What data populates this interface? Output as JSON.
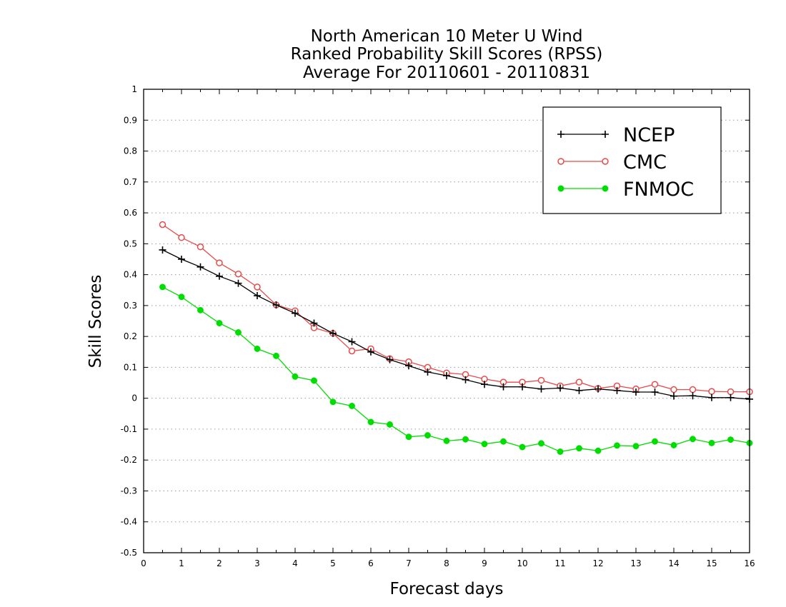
{
  "chart_data": {
    "type": "line",
    "title_lines": [
      "North American 10 Meter U Wind",
      "Ranked Probability Skill Scores (RPSS)",
      "Average For 20110601 - 20110831"
    ],
    "xlabel": "Forecast days",
    "ylabel": "Skill Scores",
    "xlim": [
      0,
      16
    ],
    "ylim": [
      -0.5,
      1
    ],
    "x_ticks": [
      0,
      1,
      2,
      3,
      4,
      5,
      6,
      7,
      8,
      9,
      10,
      11,
      12,
      13,
      14,
      15,
      16
    ],
    "y_ticks": [
      -0.5,
      -0.4,
      -0.3,
      -0.2,
      -0.1,
      0,
      0.1,
      0.2,
      0.3,
      0.4,
      0.5,
      0.6,
      0.7,
      0.8,
      0.9,
      1
    ],
    "y_tick_labels": [
      "-0.5",
      "-0.4",
      "-0.3",
      "-0.2",
      "-0.1",
      "0",
      "0.1",
      "0.2",
      "0.3",
      "0.4",
      "0.5",
      "0.6",
      "0.7",
      "0.8",
      "0.9",
      "1"
    ],
    "grid": "horizontal dotted",
    "legend_position": "top-right",
    "x": [
      0.5,
      1,
      1.5,
      2,
      2.5,
      3,
      3.5,
      4,
      4.5,
      5,
      5.5,
      6,
      6.5,
      7,
      7.5,
      8,
      8.5,
      9,
      9.5,
      10,
      10.5,
      11,
      11.5,
      12,
      12.5,
      13,
      13.5,
      14,
      14.5,
      15,
      15.5,
      16
    ],
    "series": [
      {
        "name": "NCEP",
        "color": "#000000",
        "marker": "plus",
        "values": [
          0.48,
          0.45,
          0.425,
          0.395,
          0.372,
          0.332,
          0.302,
          0.275,
          0.243,
          0.21,
          0.183,
          0.15,
          0.125,
          0.105,
          0.085,
          0.073,
          0.06,
          0.045,
          0.037,
          0.037,
          0.03,
          0.033,
          0.025,
          0.03,
          0.025,
          0.02,
          0.02,
          0.007,
          0.008,
          0.002,
          0.002,
          -0.003
        ]
      },
      {
        "name": "CMC",
        "color": "#e84a4a",
        "marker": "open-circle",
        "values": [
          0.562,
          0.52,
          0.49,
          0.438,
          0.402,
          0.36,
          0.302,
          0.283,
          0.228,
          0.21,
          0.153,
          0.16,
          0.128,
          0.118,
          0.1,
          0.082,
          0.077,
          0.062,
          0.052,
          0.052,
          0.058,
          0.04,
          0.052,
          0.032,
          0.04,
          0.03,
          0.045,
          0.028,
          0.028,
          0.022,
          0.021,
          0.021
        ]
      },
      {
        "name": "FNMOC",
        "color": "#00dd00",
        "marker": "filled-circle",
        "values": [
          0.36,
          0.328,
          0.285,
          0.243,
          0.213,
          0.16,
          0.137,
          0.07,
          0.057,
          -0.012,
          -0.025,
          -0.077,
          -0.085,
          -0.125,
          -0.12,
          -0.138,
          -0.133,
          -0.148,
          -0.14,
          -0.158,
          -0.146,
          -0.173,
          -0.162,
          -0.17,
          -0.153,
          -0.155,
          -0.14,
          -0.152,
          -0.132,
          -0.145,
          -0.134,
          -0.145
        ]
      }
    ]
  }
}
